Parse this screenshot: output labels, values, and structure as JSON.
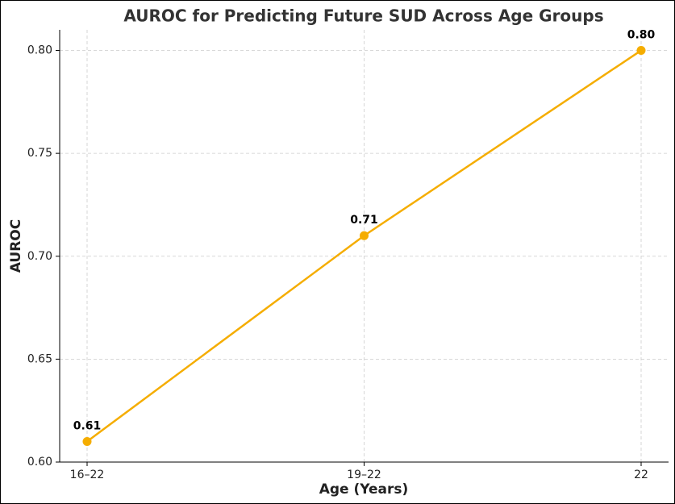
{
  "chart_data": {
    "type": "line",
    "title": "AUROC for Predicting Future SUD Across Age Groups",
    "x_label": "Age (Years)",
    "y_label": "AUROC",
    "categories": [
      "16–22",
      "19–22",
      "22"
    ],
    "series": [
      {
        "name": "AUROC",
        "color": "#f5ad00",
        "values": [
          0.61,
          0.71,
          0.8
        ],
        "value_labels": [
          "0.61",
          "0.71",
          "0.80"
        ]
      }
    ],
    "ylim": [
      0.6,
      0.81
    ],
    "yticks": [
      {
        "value": 0.6,
        "label": "0.60"
      },
      0.65,
      {
        "value": 0.7,
        "label": "0.70"
      },
      0.75,
      {
        "value": 0.8,
        "label": "0.80"
      }
    ],
    "grid": true
  }
}
